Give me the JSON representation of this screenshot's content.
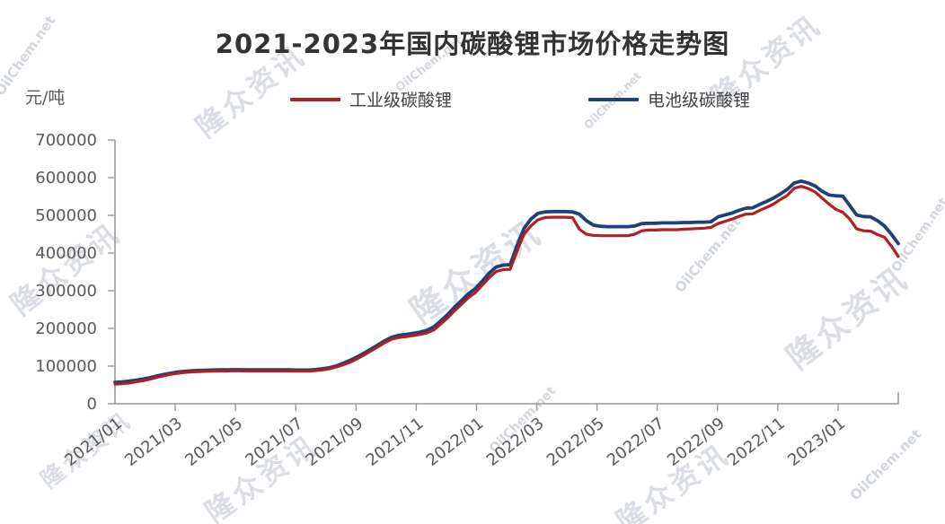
{
  "title": "2021-2023年国内碳酸锂市场价格走势图",
  "y_axis": {
    "unit": "元/吨"
  },
  "legend": {
    "items": [
      {
        "label": "工业级碳酸锂",
        "color": "#b21e22"
      },
      {
        "label": "电池级碳酸锂",
        "color": "#1e4178"
      }
    ]
  },
  "watermarks": {
    "brand": "隆众资讯",
    "site": "OilChem.net"
  },
  "colors": {
    "industrial": "#b21e22",
    "battery": "#1e4178",
    "axis": "#9a9a9a",
    "tick_label": "#595959",
    "title_text": "#333333",
    "watermark": "#8d97ab"
  },
  "chart_data": {
    "type": "line",
    "title": "2021-2023年国内碳酸锂市场价格走势图",
    "ylabel": "元/吨",
    "ylim": [
      0,
      700000
    ],
    "y_ticks": [
      700000,
      600000,
      500000,
      400000,
      300000,
      200000,
      100000,
      0
    ],
    "x_tick_labels": [
      "2021/01",
      "2021/03",
      "2021/05",
      "2021/07",
      "2021/09",
      "2021/11",
      "2022/01",
      "2022/03",
      "2022/05",
      "2022/07",
      "2022/09",
      "2022/11",
      "2023/01"
    ],
    "x_months": 26,
    "x_start": "2021/01",
    "x_end": "2023/02",
    "sampling": "weekly",
    "grid": false,
    "legend_position": "top",
    "series": [
      {
        "id": "industrial",
        "name": "工业级碳酸锂",
        "color": "#b21e22",
        "values": [
          52000,
          53000,
          55000,
          58000,
          61000,
          65000,
          70000,
          74000,
          78000,
          81000,
          83000,
          84500,
          85500,
          86000,
          86500,
          87000,
          87000,
          87500,
          87500,
          87000,
          87000,
          87000,
          87000,
          87000,
          87000,
          87000,
          86500,
          86500,
          86500,
          88000,
          90000,
          93000,
          98000,
          104000,
          111000,
          120000,
          130000,
          141000,
          152000,
          163000,
          172000,
          176000,
          178000,
          181000,
          184000,
          188000,
          196000,
          212000,
          228000,
          247000,
          264000,
          282000,
          295000,
          315000,
          335000,
          351000,
          356000,
          357000,
          405000,
          450000,
          472000,
          488000,
          494000,
          495000,
          495000,
          495000,
          494000,
          463000,
          450000,
          447000,
          446000,
          446000,
          446000,
          446000,
          446000,
          450000,
          459000,
          461000,
          461000,
          462000,
          462000,
          462000,
          463000,
          464000,
          465000,
          466000,
          468000,
          478000,
          484000,
          490000,
          497000,
          503000,
          504000,
          513000,
          521000,
          530000,
          542000,
          553000,
          572000,
          577000,
          571000,
          562000,
          546000,
          530000,
          516000,
          508000,
          490000,
          464000,
          459000,
          458000,
          449000,
          442000,
          418000,
          391000
        ]
      },
      {
        "id": "battery",
        "name": "电池级碳酸锂",
        "color": "#1e4178",
        "values": [
          57000,
          58000,
          60000,
          62500,
          65500,
          69000,
          73500,
          77500,
          81000,
          84000,
          86000,
          87500,
          88500,
          89000,
          89500,
          90000,
          90000,
          90500,
          90500,
          90000,
          90000,
          90000,
          90000,
          90000,
          90000,
          90000,
          89500,
          89500,
          89500,
          91000,
          93000,
          96000,
          101000,
          108000,
          116000,
          125000,
          135000,
          146000,
          157000,
          168000,
          177000,
          182000,
          184000,
          187000,
          190000,
          195000,
          204000,
          220000,
          237000,
          257000,
          274000,
          292000,
          306000,
          326000,
          347000,
          363000,
          368000,
          369000,
          420000,
          465000,
          490000,
          505000,
          509000,
          510000,
          510000,
          510000,
          509000,
          503000,
          486000,
          474000,
          471000,
          470000,
          470000,
          470000,
          470000,
          472000,
          478000,
          479000,
          479000,
          480000,
          480000,
          480000,
          481000,
          481000,
          482000,
          482000,
          483000,
          496000,
          501000,
          506000,
          513000,
          519000,
          520000,
          529000,
          537000,
          546000,
          557000,
          569000,
          586000,
          591000,
          586000,
          578000,
          564000,
          554000,
          552000,
          551000,
          526000,
          501000,
          497000,
          496000,
          486000,
          472000,
          450000,
          425000
        ]
      }
    ]
  }
}
